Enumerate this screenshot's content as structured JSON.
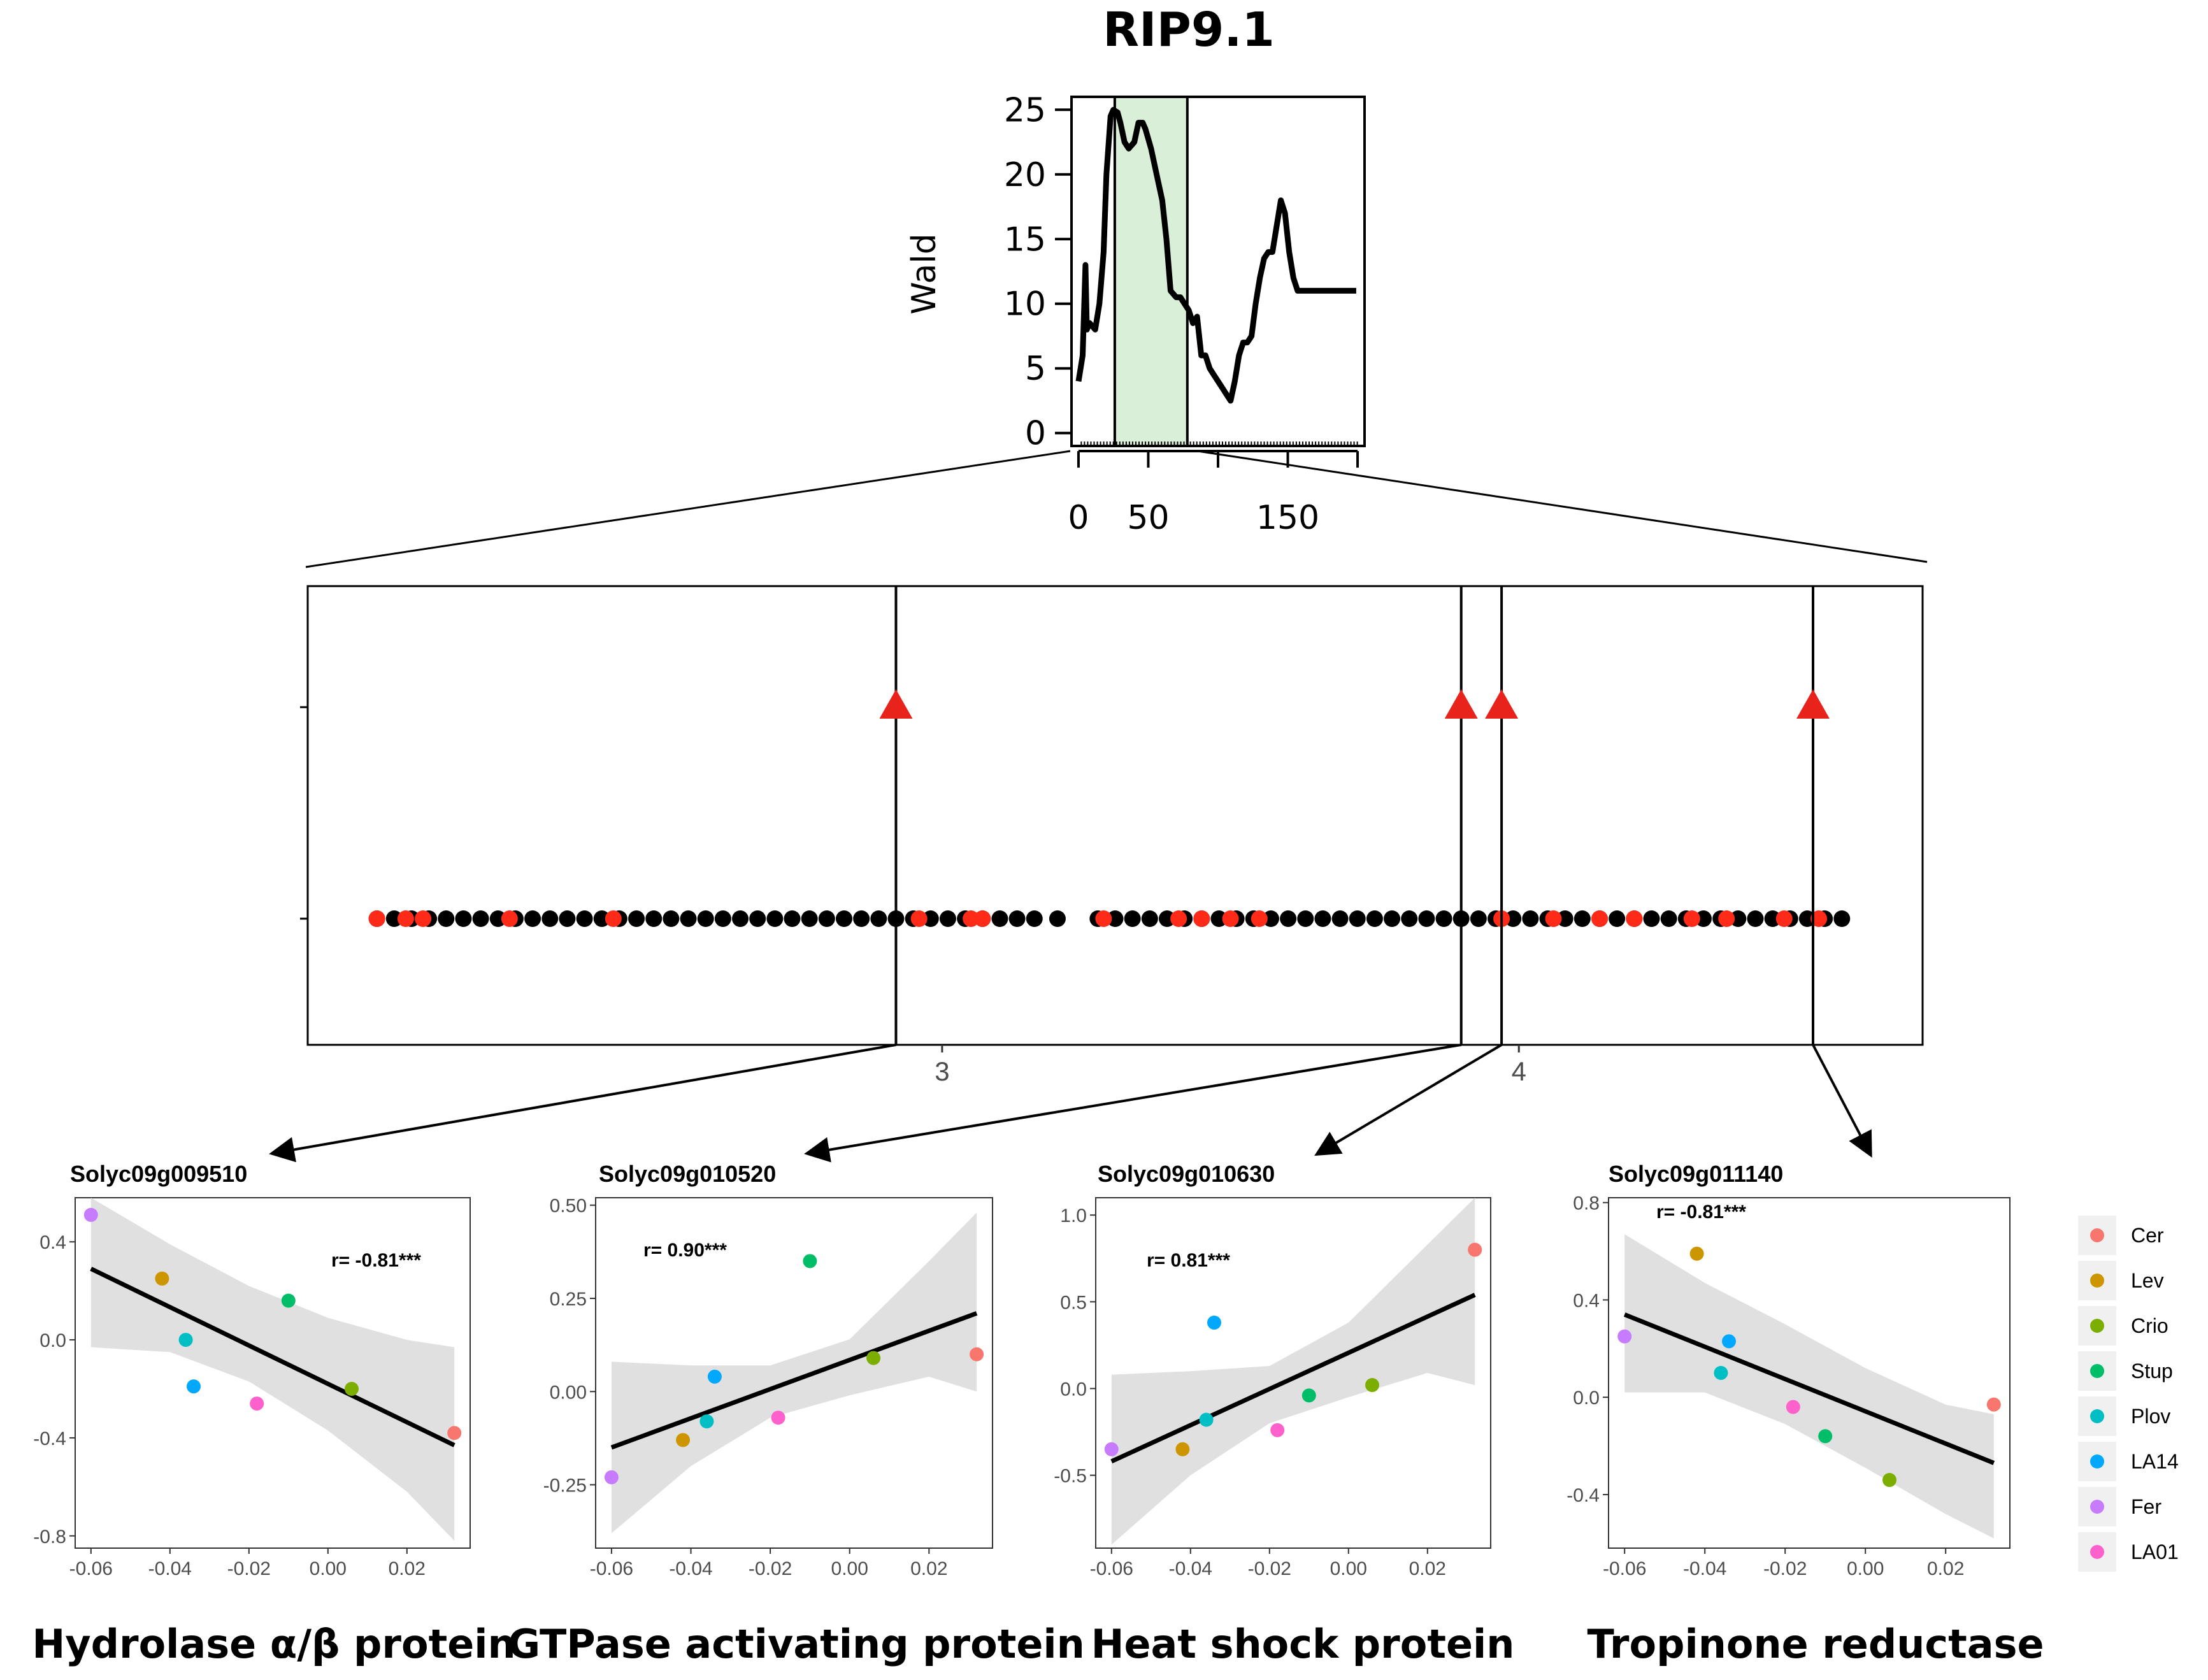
{
  "chart_data": [
    {
      "type": "line",
      "id": "qtl-profile",
      "title": "RIP9.1",
      "ylabel": "Wald",
      "xlim": [
        -5,
        205
      ],
      "ylim": [
        -1,
        26
      ],
      "xticks": [
        0,
        50,
        150
      ],
      "yticks": [
        0,
        5,
        10,
        15,
        20,
        25
      ],
      "highlight_interval": [
        26,
        78
      ],
      "x": [
        0,
        3,
        5,
        6,
        8,
        12,
        15,
        18,
        20,
        23,
        25,
        28,
        30,
        33,
        36,
        40,
        43,
        46,
        48,
        52,
        56,
        60,
        63,
        66,
        70,
        73,
        76,
        79,
        82,
        85,
        88,
        91,
        94,
        97,
        100,
        103,
        106,
        109,
        112,
        115,
        118,
        121,
        124,
        127,
        130,
        133,
        136,
        139,
        142,
        145,
        148,
        151,
        154,
        157,
        160,
        163,
        166,
        169,
        172,
        175,
        178,
        181,
        184,
        187,
        190,
        193,
        196,
        199
      ],
      "values": [
        4,
        6,
        13,
        8,
        8.5,
        8,
        10,
        14,
        20,
        24.5,
        25,
        24.8,
        24,
        22.5,
        22,
        22.5,
        24,
        24,
        23.5,
        22,
        20,
        18,
        15,
        11,
        10.5,
        10.5,
        10,
        9.5,
        8.5,
        9,
        6,
        6,
        5,
        4.5,
        4,
        3.5,
        3,
        2.5,
        4,
        6,
        7,
        7,
        7.5,
        10,
        12,
        13.5,
        14,
        14,
        16,
        18,
        17,
        14,
        12,
        11,
        11,
        11,
        11,
        11,
        11,
        11,
        11,
        11,
        11,
        11,
        11,
        11,
        11,
        11
      ]
    },
    {
      "type": "scatter",
      "id": "marker-track",
      "xticks": [
        3,
        4
      ],
      "xlim": [
        1.9,
        4.7
      ],
      "qtl_genes_x": [
        2.92,
        3.9,
        3.97,
        4.51
      ],
      "snp_x": [
        2.02,
        2.05,
        2.08,
        2.11,
        2.14,
        2.17,
        2.2,
        2.23,
        2.26,
        2.29,
        2.32,
        2.35,
        2.38,
        2.41,
        2.44,
        2.47,
        2.5,
        2.53,
        2.56,
        2.59,
        2.62,
        2.65,
        2.68,
        2.71,
        2.74,
        2.77,
        2.8,
        2.83,
        2.86,
        2.89,
        2.92,
        2.95,
        2.98,
        3.01,
        3.04,
        3.07,
        3.1,
        3.13,
        3.16,
        3.2,
        3.27,
        3.3,
        3.33,
        3.36,
        3.39,
        3.42,
        3.45,
        3.48,
        3.51,
        3.54,
        3.57,
        3.6,
        3.63,
        3.66,
        3.69,
        3.72,
        3.75,
        3.78,
        3.81,
        3.84,
        3.87,
        3.9,
        3.93,
        3.96,
        3.99,
        4.02,
        4.05,
        4.08,
        4.11,
        4.14,
        4.17,
        4.2,
        4.23,
        4.26,
        4.29,
        4.32,
        4.35,
        4.38,
        4.41,
        4.44,
        4.47,
        4.5,
        4.53,
        4.56
      ],
      "snp_red_x": [
        2.02,
        2.07,
        2.1,
        2.25,
        2.43,
        2.96,
        3.05,
        3.07,
        3.28,
        3.41,
        3.45,
        3.5,
        3.55,
        3.97,
        4.06,
        4.14,
        4.2,
        4.3,
        4.36,
        4.46,
        4.52
      ]
    },
    {
      "type": "scatter",
      "id": "corr-solyc09g009510",
      "title": "Solyc09g009510",
      "name": "Hydrolase α/β protein",
      "r_label": "r= -0.81***",
      "xlim": [
        -0.064,
        0.036
      ],
      "ylim": [
        -0.85,
        0.58
      ],
      "xticks": [
        -0.06,
        -0.04,
        -0.02,
        0.0,
        0.02
      ],
      "xtick_labels": [
        "-0.06",
        "-0.04",
        "-0.02",
        "0.00",
        "0.02"
      ],
      "yticks": [
        -0.8,
        -0.4,
        0.0,
        0.4
      ],
      "ytick_labels": [
        "-0.8",
        "-0.4",
        "0.0",
        "0.4"
      ],
      "fit": {
        "x": [
          -0.06,
          0.032
        ],
        "y": [
          0.29,
          -0.43
        ]
      },
      "band": {
        "x": [
          -0.06,
          -0.04,
          -0.02,
          0.0,
          0.02,
          0.032
        ],
        "upper": [
          0.58,
          0.39,
          0.22,
          0.09,
          0.0,
          -0.03
        ],
        "lower": [
          -0.03,
          -0.05,
          -0.17,
          -0.37,
          -0.62,
          -0.82
        ]
      },
      "points": [
        {
          "group": "Cer",
          "x": 0.032,
          "y": -0.38
        },
        {
          "group": "Lev",
          "x": -0.042,
          "y": 0.25
        },
        {
          "group": "Crio",
          "x": 0.006,
          "y": -0.2
        },
        {
          "group": "Stup",
          "x": -0.01,
          "y": 0.16
        },
        {
          "group": "Plov",
          "x": -0.036,
          "y": 0.0
        },
        {
          "group": "LA14",
          "x": -0.034,
          "y": -0.19
        },
        {
          "group": "Fer",
          "x": -0.06,
          "y": 0.51
        },
        {
          "group": "LA01",
          "x": -0.018,
          "y": -0.26
        }
      ]
    },
    {
      "type": "scatter",
      "id": "corr-solyc09g010520",
      "title": "Solyc09g010520",
      "name": "GTPase activating protein",
      "r_label": "r= 0.90***",
      "xlim": [
        -0.064,
        0.036
      ],
      "ylim": [
        -0.42,
        0.52
      ],
      "xticks": [
        -0.06,
        -0.04,
        -0.02,
        0.0,
        0.02
      ],
      "xtick_labels": [
        "-0.06",
        "-0.04",
        "-0.02",
        "0.00",
        "0.02"
      ],
      "yticks": [
        -0.25,
        0.0,
        0.25,
        0.5
      ],
      "ytick_labels": [
        "-0.25",
        "0.00",
        "0.25",
        "0.50"
      ],
      "fit": {
        "x": [
          -0.06,
          0.032
        ],
        "y": [
          -0.15,
          0.21
        ]
      },
      "band": {
        "x": [
          -0.06,
          -0.04,
          -0.02,
          0.0,
          0.02,
          0.032
        ],
        "upper": [
          0.08,
          0.07,
          0.07,
          0.14,
          0.35,
          0.48
        ],
        "lower": [
          -0.38,
          -0.2,
          -0.07,
          -0.01,
          0.04,
          0.0
        ]
      },
      "points": [
        {
          "group": "Cer",
          "x": 0.032,
          "y": 0.1
        },
        {
          "group": "Lev",
          "x": -0.042,
          "y": -0.13
        },
        {
          "group": "Crio",
          "x": 0.006,
          "y": 0.09
        },
        {
          "group": "Stup",
          "x": -0.01,
          "y": 0.35
        },
        {
          "group": "Plov",
          "x": -0.036,
          "y": -0.08
        },
        {
          "group": "LA14",
          "x": -0.034,
          "y": 0.04
        },
        {
          "group": "Fer",
          "x": -0.06,
          "y": -0.23
        },
        {
          "group": "LA01",
          "x": -0.018,
          "y": -0.07
        }
      ]
    },
    {
      "type": "scatter",
      "id": "corr-solyc09g010630",
      "title": "Solyc09g010630",
      "name": "Heat shock protein",
      "r_label": "r= 0.81***",
      "xlim": [
        -0.064,
        0.036
      ],
      "ylim": [
        -0.92,
        1.1
      ],
      "xticks": [
        -0.06,
        -0.04,
        -0.02,
        0.0,
        0.02
      ],
      "xtick_labels": [
        "-0.06",
        "-0.04",
        "-0.02",
        "0.00",
        "0.02"
      ],
      "yticks": [
        -0.5,
        0.0,
        0.5,
        1.0
      ],
      "ytick_labels": [
        "-0.5",
        "0.0",
        "0.5",
        "1.0"
      ],
      "fit": {
        "x": [
          -0.06,
          0.032
        ],
        "y": [
          -0.42,
          0.54
        ]
      },
      "band": {
        "x": [
          -0.06,
          -0.04,
          -0.02,
          0.0,
          0.02,
          0.032
        ],
        "upper": [
          0.08,
          0.1,
          0.13,
          0.38,
          0.83,
          1.1
        ],
        "lower": [
          -0.9,
          -0.5,
          -0.2,
          -0.05,
          0.09,
          0.02
        ]
      },
      "points": [
        {
          "group": "Cer",
          "x": 0.032,
          "y": 0.8
        },
        {
          "group": "Lev",
          "x": -0.042,
          "y": -0.35
        },
        {
          "group": "Crio",
          "x": 0.006,
          "y": 0.02
        },
        {
          "group": "Stup",
          "x": -0.01,
          "y": -0.04
        },
        {
          "group": "Plov",
          "x": -0.036,
          "y": -0.18
        },
        {
          "group": "LA14",
          "x": -0.034,
          "y": 0.38
        },
        {
          "group": "Fer",
          "x": -0.06,
          "y": -0.35
        },
        {
          "group": "LA01",
          "x": -0.018,
          "y": -0.24
        }
      ]
    },
    {
      "type": "scatter",
      "id": "corr-solyc09g011140",
      "title": "Solyc09g011140",
      "name": "Tropinone reductase",
      "r_label": "r= -0.81***",
      "xlim": [
        -0.064,
        0.036
      ],
      "ylim": [
        -0.62,
        0.82
      ],
      "xticks": [
        -0.06,
        -0.04,
        -0.02,
        0.0,
        0.02
      ],
      "xtick_labels": [
        "-0.06",
        "-0.04",
        "-0.02",
        "0.00",
        "0.02"
      ],
      "yticks": [
        -0.4,
        0.0,
        0.4,
        0.8
      ],
      "ytick_labels": [
        "-0.4",
        "0.0",
        "0.4",
        "0.8"
      ],
      "fit": {
        "x": [
          -0.06,
          0.032
        ],
        "y": [
          0.34,
          -0.27
        ]
      },
      "band": {
        "x": [
          -0.06,
          -0.04,
          -0.02,
          0.0,
          0.02,
          0.032
        ],
        "upper": [
          0.67,
          0.47,
          0.3,
          0.12,
          -0.03,
          -0.07
        ],
        "lower": [
          0.02,
          0.02,
          -0.11,
          -0.29,
          -0.48,
          -0.58
        ]
      },
      "points": [
        {
          "group": "Cer",
          "x": 0.032,
          "y": -0.03
        },
        {
          "group": "Lev",
          "x": -0.042,
          "y": 0.59
        },
        {
          "group": "Crio",
          "x": 0.006,
          "y": -0.34
        },
        {
          "group": "Stup",
          "x": -0.01,
          "y": -0.16
        },
        {
          "group": "Plov",
          "x": -0.036,
          "y": 0.1
        },
        {
          "group": "LA14",
          "x": -0.034,
          "y": 0.23
        },
        {
          "group": "Fer",
          "x": -0.06,
          "y": 0.25
        },
        {
          "group": "LA01",
          "x": -0.018,
          "y": -0.04
        }
      ]
    }
  ],
  "legend": [
    {
      "label": "Cer",
      "color": "#f8766d"
    },
    {
      "label": "Lev",
      "color": "#cd9600"
    },
    {
      "label": "Crio",
      "color": "#7cae00"
    },
    {
      "label": "Stup",
      "color": "#00be67"
    },
    {
      "label": "Plov",
      "color": "#00bfc4"
    },
    {
      "label": "LA14",
      "color": "#00a9ff"
    },
    {
      "label": "Fer",
      "color": "#c77cff"
    },
    {
      "label": "LA01",
      "color": "#ff61cc"
    }
  ],
  "colors": {
    "highlight_fill": "#d9efd7",
    "qtl_triangle": "#e8231b",
    "snp_black": "#000000",
    "snp_red": "#ff2a18",
    "band": "#e0e0e0",
    "panel": "#ffffff",
    "panel_border": "#333333"
  }
}
